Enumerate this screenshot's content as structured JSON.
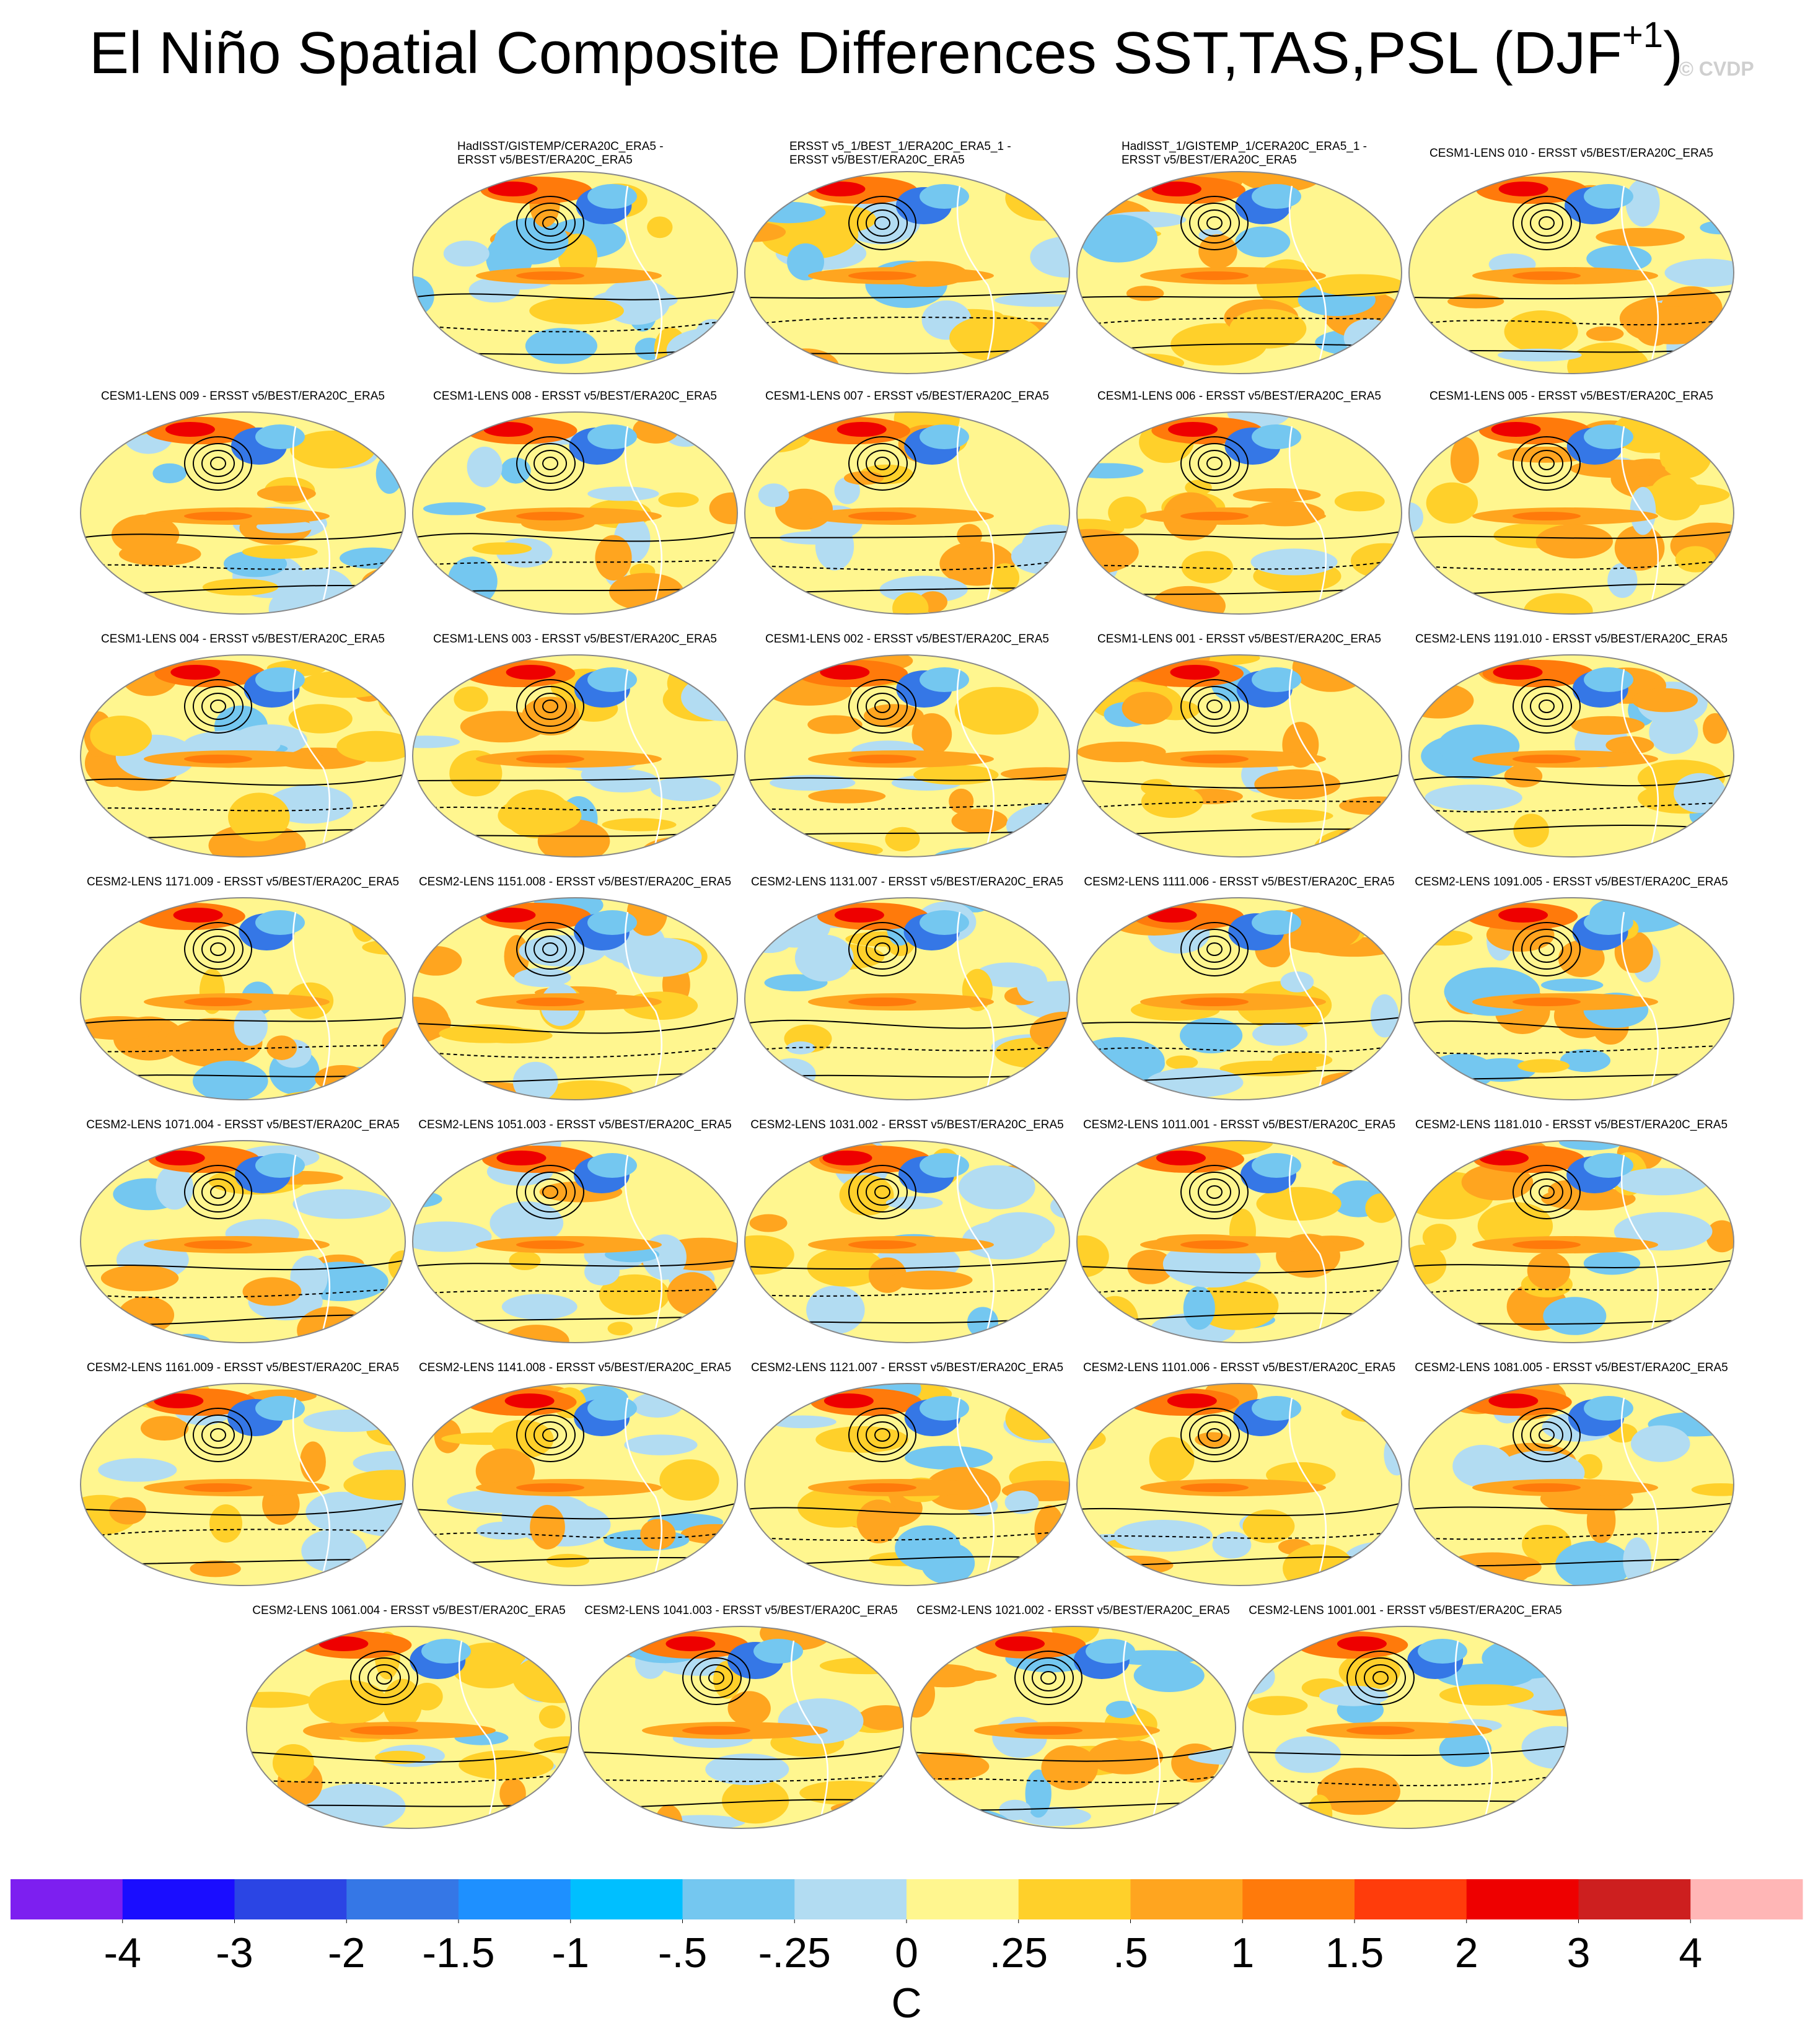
{
  "header": {
    "title": "El Niño Spatial Composite Differences SST,TAS,PSL (DJF",
    "superscript": "+1",
    "title_end": ")",
    "watermark": "© CVDP"
  },
  "rows": [
    [
      [
        "HadISST/GISTEMP/CERA20C_ERA5 -",
        "ERSST v5/BEST/ERA20C_ERA5"
      ],
      [
        "ERSST v5_1/BEST_1/ERA20C_ERA5_1 -",
        "ERSST v5/BEST/ERA20C_ERA5"
      ],
      [
        "HadISST_1/GISTEMP_1/CERA20C_ERA5_1 -",
        "ERSST v5/BEST/ERA20C_ERA5"
      ],
      [
        "CESM1-LENS 010 - ERSST v5/BEST/ERA20C_ERA5"
      ]
    ],
    [
      [
        "CESM1-LENS 009 - ERSST v5/BEST/ERA20C_ERA5"
      ],
      [
        "CESM1-LENS 008 - ERSST v5/BEST/ERA20C_ERA5"
      ],
      [
        "CESM1-LENS 007 - ERSST v5/BEST/ERA20C_ERA5"
      ],
      [
        "CESM1-LENS 006 - ERSST v5/BEST/ERA20C_ERA5"
      ],
      [
        "CESM1-LENS 005 - ERSST v5/BEST/ERA20C_ERA5"
      ]
    ],
    [
      [
        "CESM1-LENS 004 - ERSST v5/BEST/ERA20C_ERA5"
      ],
      [
        "CESM1-LENS 003 - ERSST v5/BEST/ERA20C_ERA5"
      ],
      [
        "CESM1-LENS 002 - ERSST v5/BEST/ERA20C_ERA5"
      ],
      [
        "CESM1-LENS 001 - ERSST v5/BEST/ERA20C_ERA5"
      ],
      [
        "CESM2-LENS 1191.010 - ERSST v5/BEST/ERA20C_ERA5"
      ]
    ],
    [
      [
        "CESM2-LENS 1171.009 - ERSST v5/BEST/ERA20C_ERA5"
      ],
      [
        "CESM2-LENS 1151.008 - ERSST v5/BEST/ERA20C_ERA5"
      ],
      [
        "CESM2-LENS 1131.007 - ERSST v5/BEST/ERA20C_ERA5"
      ],
      [
        "CESM2-LENS 1111.006 - ERSST v5/BEST/ERA20C_ERA5"
      ],
      [
        "CESM2-LENS 1091.005 - ERSST v5/BEST/ERA20C_ERA5"
      ]
    ],
    [
      [
        "CESM2-LENS 1071.004 - ERSST v5/BEST/ERA20C_ERA5"
      ],
      [
        "CESM2-LENS 1051.003 - ERSST v5/BEST/ERA20C_ERA5"
      ],
      [
        "CESM2-LENS 1031.002 - ERSST v5/BEST/ERA20C_ERA5"
      ],
      [
        "CESM2-LENS 1011.001 - ERSST v5/BEST/ERA20C_ERA5"
      ],
      [
        "CESM2-LENS 1181.010 - ERSST v5/BEST/ERA20C_ERA5"
      ]
    ],
    [
      [
        "CESM2-LENS 1161.009 - ERSST v5/BEST/ERA20C_ERA5"
      ],
      [
        "CESM2-LENS 1141.008 - ERSST v5/BEST/ERA20C_ERA5"
      ],
      [
        "CESM2-LENS 1121.007 - ERSST v5/BEST/ERA20C_ERA5"
      ],
      [
        "CESM2-LENS 1101.006 - ERSST v5/BEST/ERA20C_ERA5"
      ],
      [
        "CESM2-LENS 1081.005 - ERSST v5/BEST/ERA20C_ERA5"
      ]
    ],
    [
      [
        "CESM2-LENS 1061.004 - ERSST v5/BEST/ERA20C_ERA5"
      ],
      [
        "CESM2-LENS 1041.003 - ERSST v5/BEST/ERA20C_ERA5"
      ],
      [
        "CESM2-LENS 1021.002 - ERSST v5/BEST/ERA20C_ERA5"
      ],
      [
        "CESM2-LENS 1001.001 - ERSST v5/BEST/ERA20C_ERA5"
      ]
    ]
  ],
  "colorbar": {
    "colors": [
      "#7d1ff0",
      "#1a0dff",
      "#2b45e4",
      "#3577e6",
      "#1e90ff",
      "#00bfff",
      "#74c7f0",
      "#b2dcf2",
      "#fff68f",
      "#ffd02a",
      "#ffa51f",
      "#ff7a0b",
      "#ff3c0b",
      "#ee0000",
      "#cd1f1f",
      "#ffb6b6"
    ],
    "ticks": [
      -4,
      -3,
      -2,
      -1.5,
      -1,
      {
        "value": -0.5,
        "label": "-.5"
      },
      {
        "value": -0.25,
        "label": "-.25"
      },
      0,
      {
        "value": 0.25,
        "label": ".25"
      },
      {
        "value": 0.5,
        "label": ".5"
      },
      1,
      1.5,
      2,
      3,
      4
    ],
    "unit": "C"
  }
}
